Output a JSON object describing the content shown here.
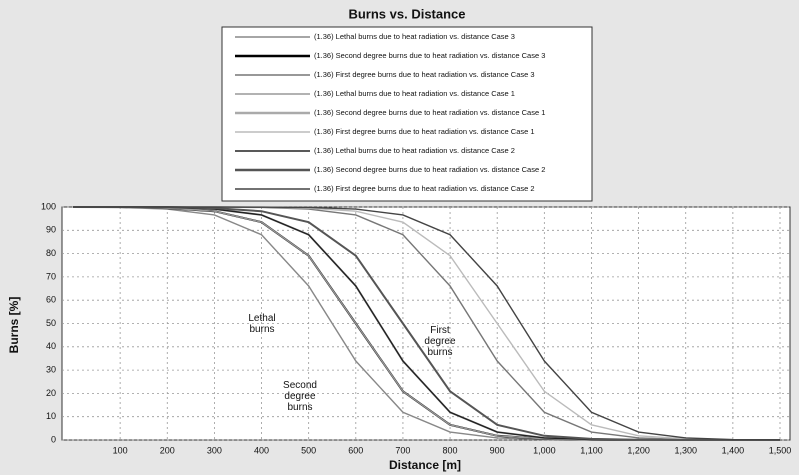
{
  "chart_data": {
    "type": "line",
    "title": "Burns vs. Distance",
    "x_label": "Distance [m]",
    "y_label": "Burns [%]",
    "x": [
      0,
      100,
      200,
      300,
      400,
      500,
      600,
      700,
      800,
      900,
      1000,
      1100,
      1200,
      1300,
      1400,
      1500
    ],
    "series": [
      {
        "name": "(1.36) Lethal burns due to heat radiation vs. distance Case 3",
        "color": "#888888",
        "values": [
          100,
          99.8,
          99.1,
          96.6,
          88.1,
          66.1,
          33.9,
          11.9,
          3.4,
          0.9,
          0.2,
          0.1,
          0,
          0,
          0,
          0
        ]
      },
      {
        "name": "(1.36) Second degree burns due to heat radiation vs. distance Case 3",
        "color": "#000000",
        "values": [
          100,
          100,
          99.5,
          98.2,
          93.5,
          79.1,
          50,
          20.9,
          6.5,
          1.8,
          0.5,
          0.1,
          0,
          0,
          0,
          0
        ]
      },
      {
        "name": "(1.36) First degree burns due to heat radiation vs. distance Case 3",
        "color": "#777777",
        "values": [
          100,
          100,
          100,
          99.9,
          99.8,
          99.1,
          96.6,
          88.1,
          66.1,
          33.9,
          11.9,
          3.4,
          0.9,
          0.2,
          0.1,
          0
        ]
      },
      {
        "name": "(1.36) Lethal burns due to heat radiation vs. distance Case 1",
        "color": "#999999",
        "values": [
          100,
          100,
          99.5,
          98.2,
          93.5,
          79.1,
          50,
          20.9,
          6.5,
          1.8,
          0.5,
          0.1,
          0,
          0,
          0,
          0
        ]
      },
      {
        "name": "(1.36) Second degree burns due to heat radiation vs. distance Case 1",
        "color": "#aaaaaa",
        "values": [
          100,
          99.9,
          99.8,
          99.1,
          96.6,
          88.1,
          66.1,
          33.9,
          11.9,
          3.4,
          0.9,
          0.2,
          0.1,
          0,
          0,
          0
        ]
      },
      {
        "name": "(1.36) First degree burns due to heat radiation vs. distance Case 1",
        "color": "#bbbbbb",
        "values": [
          100,
          100,
          100,
          100,
          100,
          99.5,
          98.2,
          93.5,
          79.1,
          50,
          20.9,
          6.5,
          1.8,
          0.5,
          0.1,
          0
        ]
      },
      {
        "name": "(1.36) Lethal burns due to heat radiation vs. distance Case 2",
        "color": "#222222",
        "values": [
          100,
          99.9,
          99.8,
          99.1,
          96.6,
          88.1,
          66.1,
          33.9,
          11.9,
          3.4,
          0.9,
          0.2,
          0.1,
          0,
          0,
          0
        ]
      },
      {
        "name": "(1.36) Second degree burns due to heat radiation vs. distance Case 2",
        "color": "#555555",
        "values": [
          100,
          100,
          100,
          99.5,
          98.2,
          93.5,
          79.1,
          50,
          20.9,
          6.5,
          1.8,
          0.5,
          0.1,
          0,
          0,
          0
        ]
      },
      {
        "name": "(1.36) First degree burns due to heat radiation vs. distance Case 2",
        "color": "#444444",
        "values": [
          100,
          100,
          100,
          100,
          99.9,
          99.8,
          99.1,
          96.6,
          88.1,
          66.1,
          33.9,
          11.9,
          3.4,
          0.9,
          0.2,
          0.1
        ]
      }
    ],
    "annotations": [
      "Lethal burns",
      "First degree burns",
      "Second degree burns"
    ],
    "xlim": [
      0,
      1500
    ],
    "xticks": [
      100,
      200,
      300,
      400,
      500,
      600,
      700,
      800,
      900,
      {
        "value": 1000,
        "label": "1,000"
      },
      {
        "value": 1100,
        "label": "1,100"
      },
      {
        "value": 1200,
        "label": "1,200"
      },
      {
        "value": 1300,
        "label": "1,300"
      },
      {
        "value": 1400,
        "label": "1,400"
      },
      {
        "value": 1500,
        "label": "1,500"
      }
    ],
    "ylim": [
      0,
      100
    ],
    "yticks": [
      0,
      10,
      20,
      30,
      40,
      50,
      60,
      70,
      80,
      90,
      100
    ],
    "grid": true
  }
}
